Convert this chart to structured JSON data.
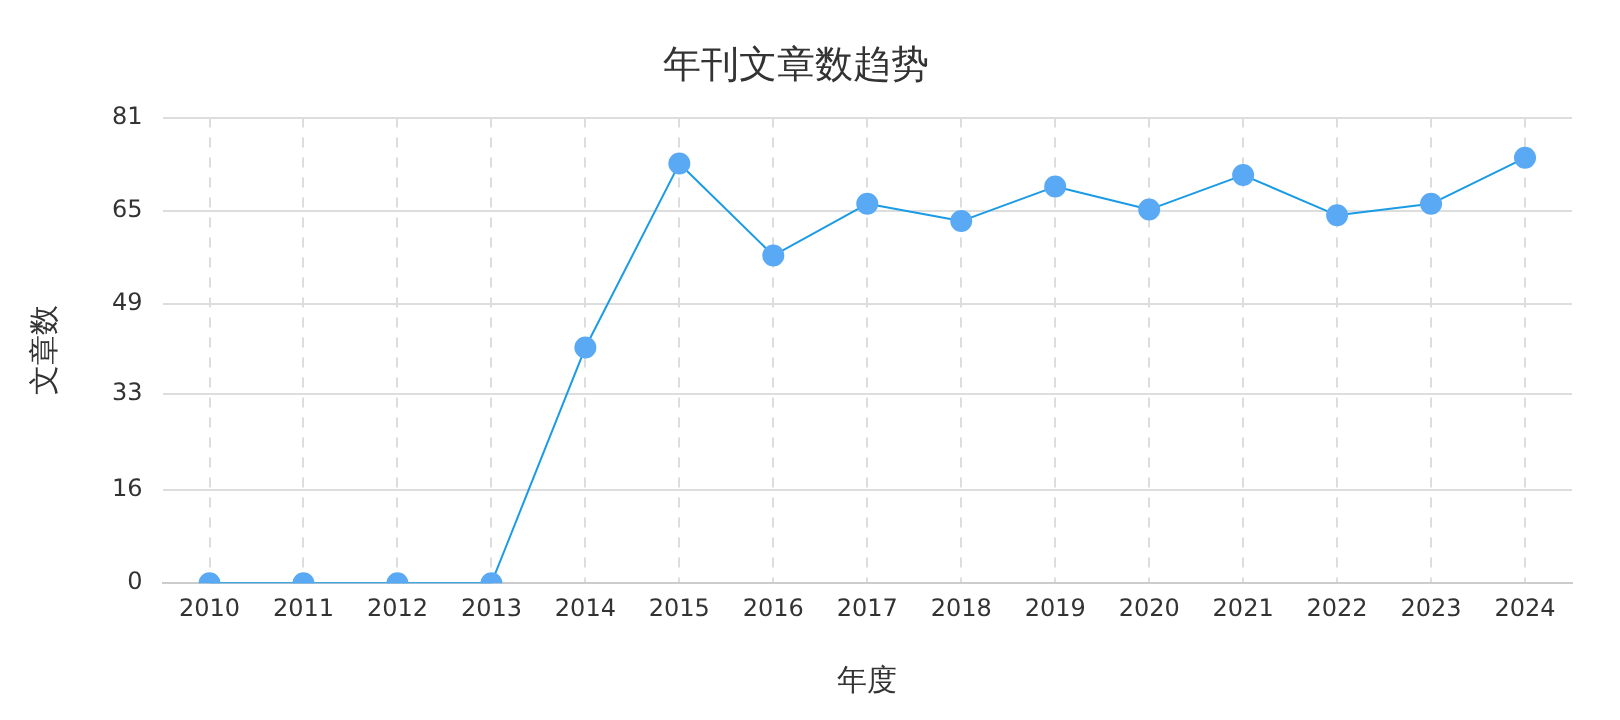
{
  "chart_data": {
    "type": "line",
    "title": "年刊文章数趋势",
    "xlabel": "年度",
    "ylabel": "文章数",
    "categories": [
      "2010",
      "2011",
      "2012",
      "2013",
      "2014",
      "2015",
      "2016",
      "2017",
      "2018",
      "2019",
      "2020",
      "2021",
      "2022",
      "2023",
      "2024"
    ],
    "series": [
      {
        "color": "#1a9be6",
        "values": [
          0,
          0,
          0,
          0,
          41,
          73,
          57,
          66,
          63,
          69,
          65,
          71,
          64,
          66,
          74
        ]
      }
    ],
    "ylim": [
      0,
      81
    ],
    "yticks": [
      0,
      {
        "value": 16.2,
        "label": "16"
      },
      33,
      {
        "value": 48.6,
        "label": "49"
      },
      {
        "value": 64.8,
        "label": "65"
      },
      81
    ],
    "grid": true,
    "marker": "circle",
    "line_style": "solid",
    "legend": false
  }
}
